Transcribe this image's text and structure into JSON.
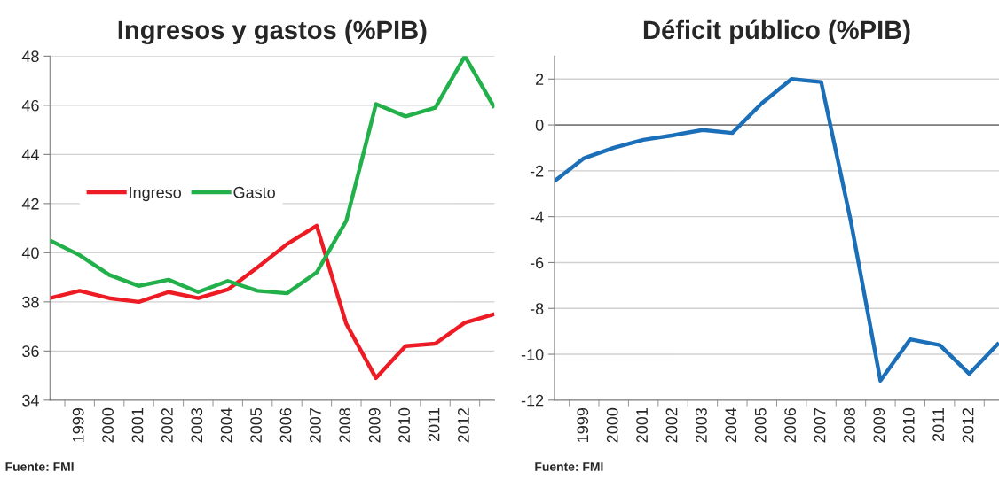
{
  "chart_data": [
    {
      "type": "line",
      "title": "Ingresos y gastos (%PIB)",
      "categories": [
        null,
        "1999",
        "2000",
        "2001",
        "2002",
        "2003",
        "2004",
        "2005",
        "2006",
        "2007",
        "2008",
        "2009",
        "2010",
        "2011",
        "2012",
        null
      ],
      "series": [
        {
          "name": "Ingreso",
          "color": "#ed1c24",
          "values": [
            38.15,
            38.45,
            38.15,
            38.0,
            38.4,
            38.15,
            38.5,
            39.4,
            40.35,
            41.1,
            37.1,
            34.9,
            36.2,
            36.3,
            37.15,
            37.5
          ]
        },
        {
          "name": "Gasto",
          "color": "#22b04b",
          "values": [
            40.5,
            39.9,
            39.1,
            38.65,
            38.9,
            38.4,
            38.85,
            38.45,
            38.35,
            39.2,
            41.3,
            46.05,
            45.55,
            45.9,
            48.0,
            45.9
          ]
        }
      ],
      "ylim": [
        34,
        48
      ],
      "yticks": [
        34,
        36,
        38,
        40,
        42,
        44,
        46,
        48
      ],
      "grid": "y",
      "legend": "center left",
      "annotations": [
        "Fuente: FMI"
      ]
    },
    {
      "type": "line",
      "title": "Déficit público (%PIB)",
      "categories": [
        null,
        "1999",
        "2000",
        "2001",
        "2002",
        "2003",
        "2004",
        "2005",
        "2006",
        "2007",
        "2008",
        "2009",
        "2010",
        "2011",
        "2012",
        null
      ],
      "series": [
        {
          "color": "#1b6fb8",
          "values": [
            -2.45,
            -1.45,
            -1.0,
            -0.65,
            -0.45,
            -0.22,
            -0.35,
            0.95,
            2.0,
            1.87,
            -4.2,
            -11.15,
            -9.35,
            -9.6,
            -10.85,
            -9.5
          ]
        }
      ],
      "ylim": [
        -12,
        3
      ],
      "yticks": [
        -12,
        -10,
        -8,
        -6,
        -4,
        -2,
        0,
        2
      ],
      "ref_lines": [
        {
          "axis": "y",
          "value": 0,
          "color": "#808080"
        }
      ],
      "grid": "y",
      "annotations": [
        "Fuente: FMI"
      ]
    }
  ]
}
